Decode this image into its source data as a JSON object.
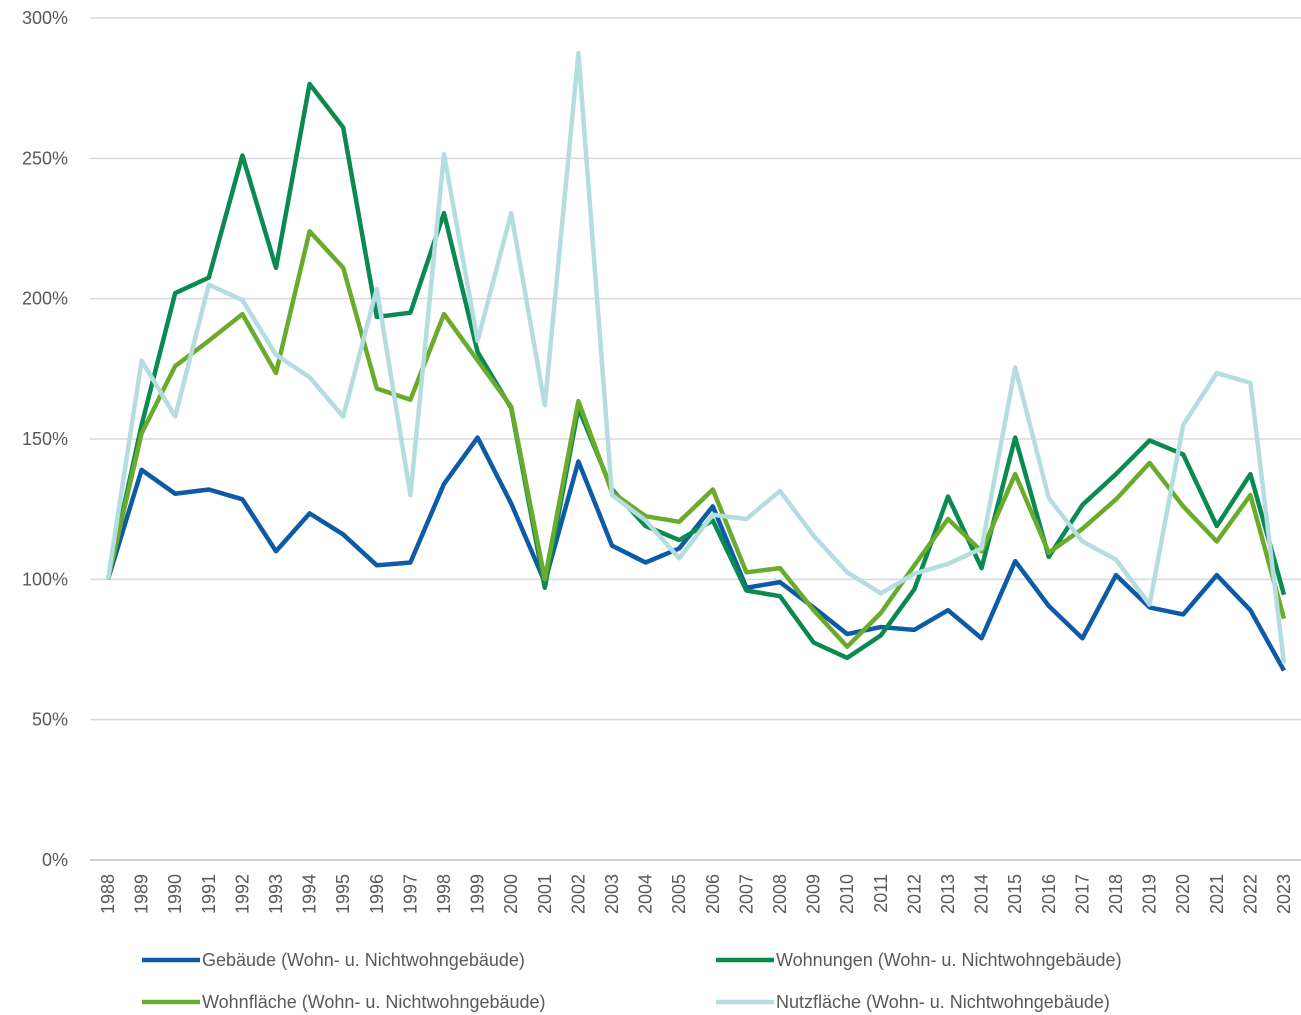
{
  "chart_data": {
    "type": "line",
    "categories": [
      "1988",
      "1989",
      "1990",
      "1991",
      "1992",
      "1993",
      "1994",
      "1995",
      "1996",
      "1997",
      "1998",
      "1999",
      "2000",
      "2001",
      "2002",
      "2003",
      "2004",
      "2005",
      "2006",
      "2007",
      "2008",
      "2009",
      "2010",
      "2011",
      "2012",
      "2013",
      "2014",
      "2015",
      "2016",
      "2017",
      "2018",
      "2019",
      "2020",
      "2021",
      "2022",
      "2023"
    ],
    "series": [
      {
        "name": "Gebäude (Wohn- u. Nichtwohngebäude)",
        "color": "#0d5aa6",
        "values": [
          100,
          139,
          130.5,
          132,
          128.5,
          110,
          123.5,
          116,
          105,
          106,
          134,
          150.5,
          127,
          99,
          142,
          112,
          106,
          111,
          126,
          97,
          99,
          90,
          80.5,
          83,
          82,
          89,
          79,
          106.5,
          90.5,
          79,
          101.5,
          90,
          87.5,
          101.5,
          89,
          67.5
        ]
      },
      {
        "name": "Wohnungen (Wohn- u. Nichtwohngebäude)",
        "color": "#0a8a50",
        "values": [
          100,
          155,
          202,
          207.5,
          251,
          211,
          276.5,
          261,
          193.5,
          195,
          230.5,
          181,
          161,
          97,
          161,
          132,
          119,
          114,
          121,
          96,
          94,
          77.5,
          72,
          80,
          96.5,
          129.5,
          104,
          150.5,
          108,
          126.5,
          137.5,
          149.5,
          144.5,
          119,
          137.5,
          94.5
        ]
      },
      {
        "name": "Wohnfläche (Wohn- u. Nichtwohngebäude)",
        "color": "#6aab2e",
        "values": [
          100,
          152,
          176,
          185,
          194.5,
          173.5,
          224,
          211,
          168,
          164,
          194.5,
          178,
          161.5,
          100,
          163.5,
          131,
          122.5,
          120.5,
          132,
          102.5,
          104,
          89,
          76,
          88,
          105,
          121.5,
          110,
          137.5,
          109.5,
          118,
          128.5,
          141.5,
          126,
          113.5,
          130,
          86
        ]
      },
      {
        "name": "Nutzfläche (Wohn- u. Nichtwohngebäude)",
        "color": "#b4dde0",
        "values": [
          100,
          178,
          158,
          205,
          199.5,
          180,
          172,
          158,
          203.5,
          130,
          251.5,
          185,
          230.5,
          162,
          287.5,
          130,
          121,
          107.5,
          123,
          121.5,
          131.5,
          115.5,
          102.5,
          95,
          102,
          105.5,
          111,
          175.5,
          129,
          113.5,
          107,
          91,
          155,
          173.5,
          170,
          70
        ]
      }
    ],
    "ylim": [
      0,
      300
    ],
    "yticks": [
      {
        "value": 0,
        "label": "0%"
      },
      {
        "value": 50,
        "label": "50%"
      },
      {
        "value": 100,
        "label": "100%"
      },
      {
        "value": 150,
        "label": "150%"
      },
      {
        "value": 200,
        "label": "200%"
      },
      {
        "value": 250,
        "label": "250%"
      },
      {
        "value": 300,
        "label": "300%"
      }
    ],
    "grid": true
  }
}
